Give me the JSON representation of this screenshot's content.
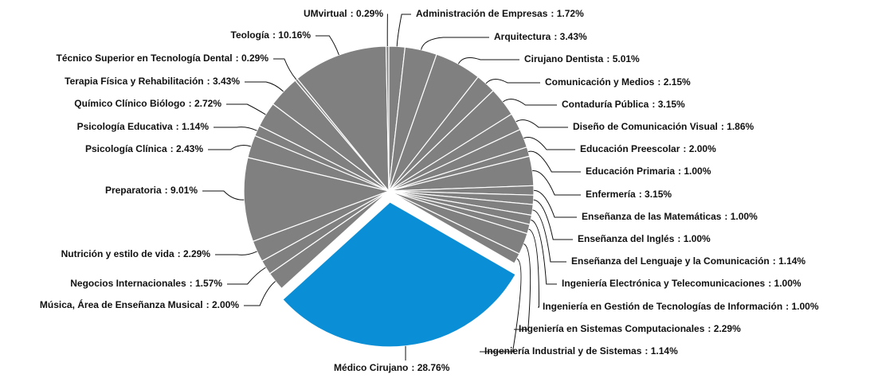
{
  "chart_data": {
    "type": "pie",
    "categories": [
      "Administración de Empresas",
      "Arquitectura",
      "Cirujano Dentista",
      "Comunicación y Medios",
      "Contaduría Pública",
      "Diseño de Comunicación Visual",
      "Educación Preescolar",
      "Educación Primaria",
      "Enfermería",
      "Enseñanza de las Matemáticas",
      "Enseñanza del Inglés",
      "Enseñanza del Lenguaje y la Comunicación",
      "Ingeniería Electrónica y Telecomunicaciones",
      "Ingeniería en Gestión de Tecnologías de Información",
      "Ingeniería en Sistemas Computacionales",
      "Ingeniería Industrial y de Sistemas",
      "Médico Cirujano",
      "Música, Área de Enseñanza Musical",
      "Negocios Internacionales",
      "Nutrición y estilo de vida",
      "Preparatoria",
      "Psicología Clínica",
      "Psicología Educativa",
      "Químico Clínico Biólogo",
      "Terapia Física y Rehabilitación",
      "Técnico Superior en Tecnología Dental",
      "Teología",
      "UMvirtual"
    ],
    "values": [
      1.72,
      3.43,
      5.01,
      2.15,
      3.15,
      1.86,
      2.0,
      1.0,
      3.15,
      1.0,
      1.0,
      1.14,
      1.0,
      1.0,
      2.29,
      1.14,
      28.76,
      2.0,
      1.57,
      2.29,
      9.01,
      2.43,
      1.14,
      2.72,
      3.43,
      0.29,
      10.16,
      0.29
    ],
    "value_labels": [
      ": 1.72%",
      ": 3.43%",
      ": 5.01%",
      ": 2.15%",
      ": 3.15%",
      ": 1.86%",
      ": 2.00%",
      ": 1.00%",
      ": 3.15%",
      ": 1.00%",
      ": 1.00%",
      ": 1.14%",
      ": 1.00%",
      ": 1.00%",
      ": 2.29%",
      ": 1.14%",
      ": 28.76%",
      ": 2.00%",
      ": 1.57%",
      ": 2.29%",
      ": 9.01%",
      ": 2.43%",
      ": 1.14%",
      ": 2.72%",
      ": 3.43%",
      ": 0.29%",
      ": 10.16%",
      ": 0.29%"
    ],
    "colors": [
      "#808080",
      "#808080",
      "#808080",
      "#808080",
      "#808080",
      "#808080",
      "#808080",
      "#808080",
      "#808080",
      "#808080",
      "#808080",
      "#808080",
      "#808080",
      "#808080",
      "#808080",
      "#808080",
      "#0a8fd6",
      "#808080",
      "#808080",
      "#808080",
      "#808080",
      "#808080",
      "#808080",
      "#808080",
      "#808080",
      "#808080",
      "#808080",
      "#808080"
    ],
    "explode": "Médico Cirujano"
  }
}
